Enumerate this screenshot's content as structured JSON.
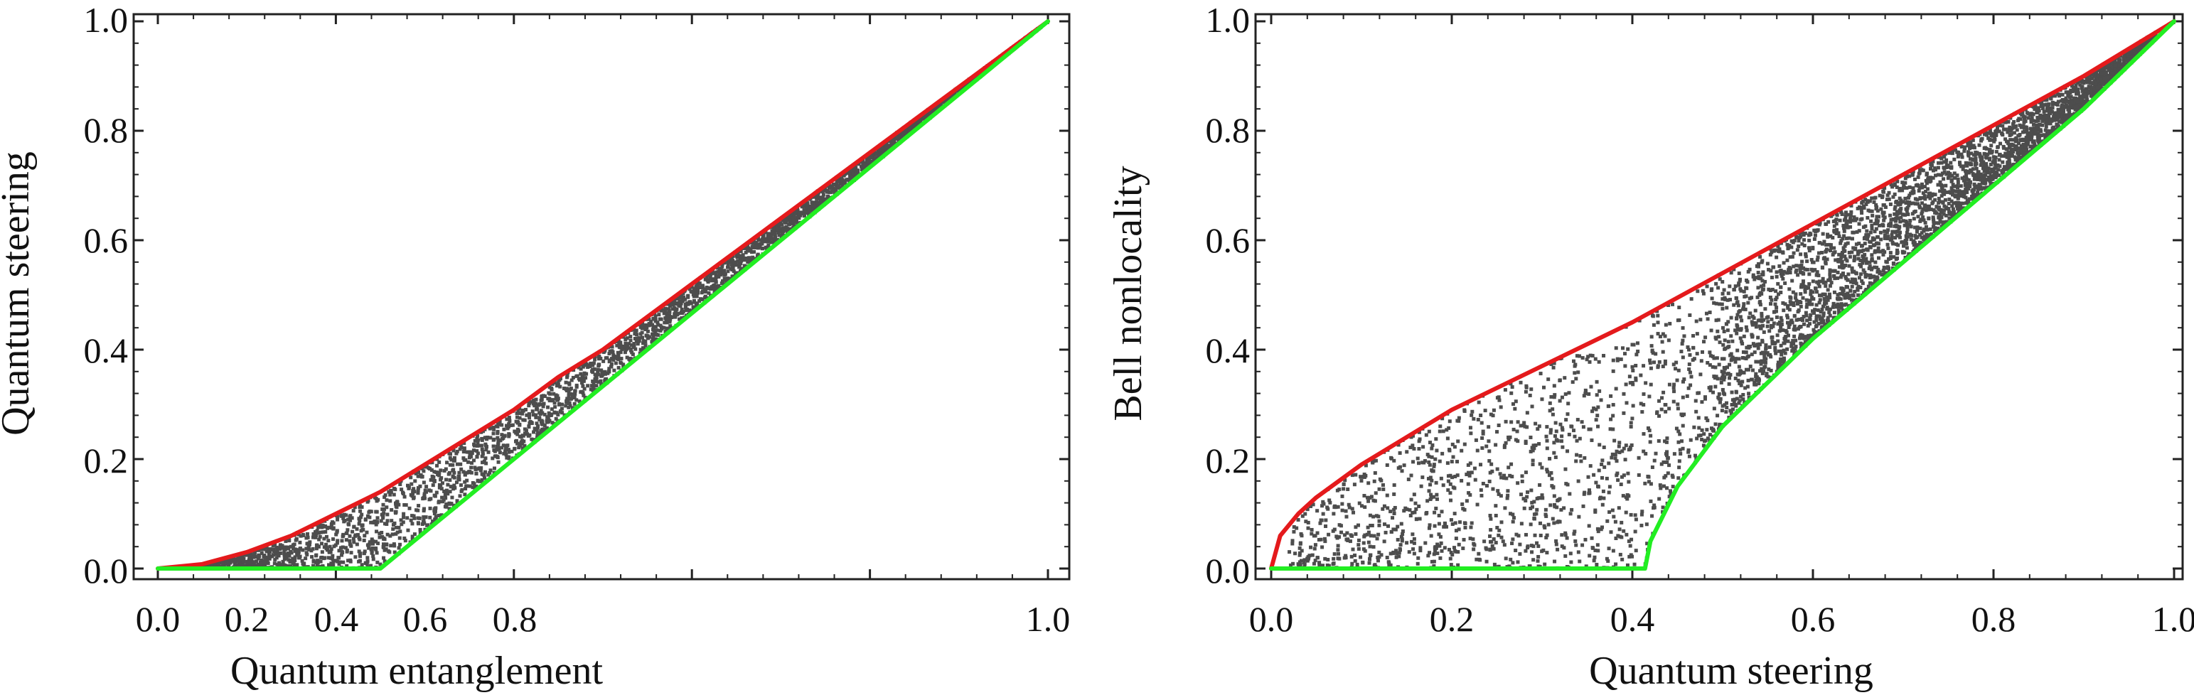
{
  "chart_data": [
    {
      "type": "scatter",
      "xlabel": "Quantum entanglement",
      "ylabel": "Quantum steering",
      "xlim": [
        0.0,
        1.0
      ],
      "ylim": [
        0.0,
        1.0
      ],
      "xticks": [
        "0.0",
        "0.2",
        "0.4",
        "0.6",
        "0.8",
        "1.0"
      ],
      "yticks": [
        "0.0",
        "0.2",
        "0.4",
        "0.6",
        "0.8",
        "1.0"
      ],
      "grid": false,
      "series": [
        {
          "kind": "points",
          "color": "#4d4d4d",
          "region": {
            "upper": [
              [
                0.0,
                0.0
              ],
              [
                0.05,
                0.008
              ],
              [
                0.1,
                0.03
              ],
              [
                0.15,
                0.06
              ],
              [
                0.2,
                0.1
              ],
              [
                0.25,
                0.14
              ],
              [
                0.3,
                0.19
              ],
              [
                0.35,
                0.24
              ],
              [
                0.4,
                0.29
              ],
              [
                0.45,
                0.35
              ],
              [
                0.5,
                0.4
              ],
              [
                0.55,
                0.46
              ],
              [
                0.6,
                0.52
              ],
              [
                0.65,
                0.58
              ],
              [
                0.7,
                0.64
              ],
              [
                0.75,
                0.7
              ],
              [
                0.8,
                0.76
              ],
              [
                0.85,
                0.82
              ],
              [
                0.9,
                0.88
              ],
              [
                0.95,
                0.94
              ],
              [
                1.0,
                1.0
              ]
            ],
            "lower": [
              [
                0.0,
                0.0
              ],
              [
                0.1,
                0.0
              ],
              [
                0.25,
                0.0
              ],
              [
                0.3,
                0.066
              ],
              [
                0.4,
                0.2
              ],
              [
                0.5,
                0.333
              ],
              [
                0.6,
                0.467
              ],
              [
                0.7,
                0.6
              ],
              [
                0.8,
                0.733
              ],
              [
                0.9,
                0.867
              ],
              [
                1.0,
                1.0
              ]
            ]
          }
        },
        {
          "kind": "line",
          "color": "#e41a1c",
          "points": [
            [
              0.0,
              0.0
            ],
            [
              0.05,
              0.008
            ],
            [
              0.1,
              0.03
            ],
            [
              0.15,
              0.06
            ],
            [
              0.2,
              0.1
            ],
            [
              0.25,
              0.14
            ],
            [
              0.3,
              0.19
            ],
            [
              0.35,
              0.24
            ],
            [
              0.4,
              0.29
            ],
            [
              0.45,
              0.35
            ],
            [
              0.5,
              0.4
            ],
            [
              0.55,
              0.46
            ],
            [
              0.6,
              0.52
            ],
            [
              0.65,
              0.58
            ],
            [
              0.7,
              0.64
            ],
            [
              0.75,
              0.7
            ],
            [
              0.8,
              0.76
            ],
            [
              0.85,
              0.82
            ],
            [
              0.9,
              0.88
            ],
            [
              0.95,
              0.94
            ],
            [
              1.0,
              1.0
            ]
          ]
        },
        {
          "kind": "line",
          "color": "#22ee22",
          "points": [
            [
              0.0,
              0.0
            ],
            [
              0.25,
              0.0
            ],
            [
              1.0,
              1.0
            ]
          ]
        }
      ]
    },
    {
      "type": "scatter",
      "xlabel": "Quantum steering",
      "ylabel": "Bell nonlocality",
      "xlim": [
        0.0,
        1.0
      ],
      "ylim": [
        0.0,
        1.0
      ],
      "xticks": [
        "0.0",
        "0.2",
        "0.4",
        "0.6",
        "0.8",
        "1.0"
      ],
      "yticks": [
        "0.0",
        "0.2",
        "0.4",
        "0.6",
        "0.8",
        "1.0"
      ],
      "grid": false,
      "series": [
        {
          "kind": "points",
          "color": "#4d4d4d",
          "region": {
            "upper": [
              [
                0.0,
                0.0
              ],
              [
                0.01,
                0.06
              ],
              [
                0.03,
                0.1
              ],
              [
                0.05,
                0.13
              ],
              [
                0.1,
                0.19
              ],
              [
                0.15,
                0.24
              ],
              [
                0.2,
                0.29
              ],
              [
                0.3,
                0.37
              ],
              [
                0.4,
                0.45
              ],
              [
                0.5,
                0.54
              ],
              [
                0.6,
                0.63
              ],
              [
                0.7,
                0.72
              ],
              [
                0.8,
                0.81
              ],
              [
                0.9,
                0.9
              ],
              [
                1.0,
                1.0
              ]
            ],
            "lower": [
              [
                0.0,
                0.0
              ],
              [
                0.414,
                0.0
              ],
              [
                0.42,
                0.05
              ],
              [
                0.45,
                0.15
              ],
              [
                0.5,
                0.26
              ],
              [
                0.6,
                0.42
              ],
              [
                0.7,
                0.56
              ],
              [
                0.8,
                0.7
              ],
              [
                0.9,
                0.84
              ],
              [
                1.0,
                1.0
              ]
            ]
          }
        },
        {
          "kind": "line",
          "color": "#e41a1c",
          "points": [
            [
              0.0,
              0.0
            ],
            [
              0.01,
              0.06
            ],
            [
              0.03,
              0.1
            ],
            [
              0.05,
              0.13
            ],
            [
              0.1,
              0.19
            ],
            [
              0.15,
              0.24
            ],
            [
              0.2,
              0.29
            ],
            [
              0.3,
              0.37
            ],
            [
              0.4,
              0.45
            ],
            [
              0.5,
              0.54
            ],
            [
              0.6,
              0.63
            ],
            [
              0.7,
              0.72
            ],
            [
              0.8,
              0.81
            ],
            [
              0.9,
              0.9
            ],
            [
              1.0,
              1.0
            ]
          ]
        },
        {
          "kind": "line",
          "color": "#22ee22",
          "points": [
            [
              0.0,
              0.0
            ],
            [
              0.414,
              0.0
            ],
            [
              0.42,
              0.05
            ],
            [
              0.45,
              0.15
            ],
            [
              0.5,
              0.26
            ],
            [
              0.6,
              0.42
            ],
            [
              0.7,
              0.56
            ],
            [
              0.8,
              0.7
            ],
            [
              0.9,
              0.84
            ],
            [
              1.0,
              1.0
            ]
          ]
        }
      ]
    }
  ]
}
